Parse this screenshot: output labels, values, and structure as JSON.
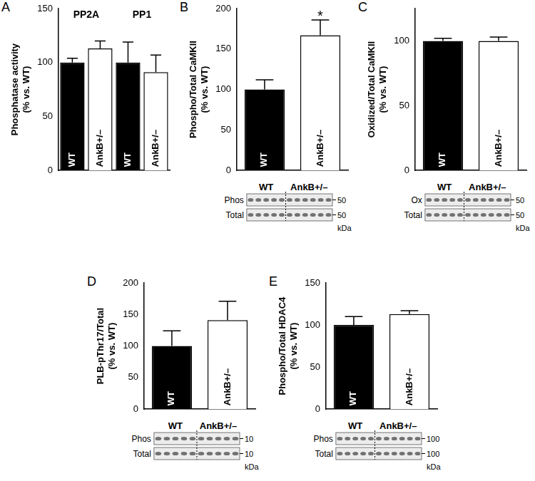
{
  "chart_data": [
    {
      "panel": "A",
      "type": "bar",
      "y_label": [
        "Phosphatase activity",
        "(% vs. WT)"
      ],
      "groups": [
        "PP2A",
        "PP1"
      ],
      "categories": [
        "WT",
        "AnkB+/–",
        "WT",
        "AnkB+/–"
      ],
      "values": [
        100,
        113,
        100,
        91
      ],
      "errors": [
        4,
        7,
        19,
        16
      ],
      "colors": [
        "#000000",
        "#ffffff",
        "#000000",
        "#ffffff"
      ],
      "ylim": [
        0,
        150
      ],
      "yticks": [
        0,
        50,
        100,
        150
      ],
      "grid": false,
      "tick_labels": "y"
    },
    {
      "panel": "B",
      "type": "bar",
      "y_label": [
        "Phospho/Total CaMKII",
        "(% vs. WT)"
      ],
      "categories": [
        "WT",
        "AnkB+/–"
      ],
      "values": [
        100,
        167
      ],
      "errors": [
        12,
        19
      ],
      "colors": [
        "#000000",
        "#ffffff"
      ],
      "ylim": [
        0,
        200
      ],
      "yticks": [
        0,
        50,
        100,
        150,
        200
      ],
      "grid": false,
      "tick_labels": "y",
      "annotations": [
        {
          "text": "*",
          "category": "AnkB+/–"
        }
      ],
      "blot": {
        "groups": [
          "WT",
          "AnkB+/–"
        ],
        "lanes": [
          5,
          6
        ],
        "rows": [
          "Phos",
          "Total"
        ],
        "markers": [
          "50",
          "50"
        ],
        "unit": "kDa"
      }
    },
    {
      "panel": "C",
      "type": "bar",
      "y_label": [
        "Oxidized/Total CaMKII",
        "(% vs. WT)"
      ],
      "categories": [
        "WT",
        "AnkB+/–"
      ],
      "values": [
        100,
        100
      ],
      "errors": [
        2,
        3
      ],
      "colors": [
        "#000000",
        "#ffffff"
      ],
      "ylim": [
        0,
        125
      ],
      "yticks": [
        0,
        50,
        100
      ],
      "grid": false,
      "tick_labels": "y",
      "blot": {
        "groups": [
          "WT",
          "AnkB+/–"
        ],
        "lanes": [
          5,
          6
        ],
        "rows": [
          "Ox",
          "Total"
        ],
        "markers": [
          "50",
          "50"
        ],
        "unit": "kDa"
      }
    },
    {
      "panel": "D",
      "type": "bar",
      "y_label": [
        "PLB-pThr17/Total",
        "(% vs. WT)"
      ],
      "categories": [
        "WT",
        "AnkB+/–"
      ],
      "values": [
        100,
        141
      ],
      "errors": [
        24,
        30
      ],
      "colors": [
        "#000000",
        "#ffffff"
      ],
      "ylim": [
        0,
        200
      ],
      "yticks": [
        0,
        50,
        100,
        150,
        200
      ],
      "grid": false,
      "tick_labels": "y",
      "blot": {
        "groups": [
          "WT",
          "AnkB+/–"
        ],
        "lanes": [
          5,
          5
        ],
        "rows": [
          "Phos",
          "Total"
        ],
        "markers": [
          "10",
          "10"
        ],
        "unit": "kDa"
      }
    },
    {
      "panel": "E",
      "type": "bar",
      "y_label": [
        "Phospho/Total HDAC4",
        "(% vs. WT)"
      ],
      "categories": [
        "WT",
        "AnkB+/–"
      ],
      "values": [
        100,
        113
      ],
      "errors": [
        10,
        4
      ],
      "colors": [
        "#000000",
        "#ffffff"
      ],
      "ylim": [
        0,
        150
      ],
      "yticks": [
        0,
        50,
        100,
        150
      ],
      "grid": false,
      "tick_labels": "y",
      "blot": {
        "groups": [
          "WT",
          "AnkB+/–"
        ],
        "lanes": [
          5,
          6
        ],
        "rows": [
          "Phos",
          "Total"
        ],
        "markers": [
          "100",
          "100"
        ],
        "unit": "kDa"
      }
    }
  ]
}
